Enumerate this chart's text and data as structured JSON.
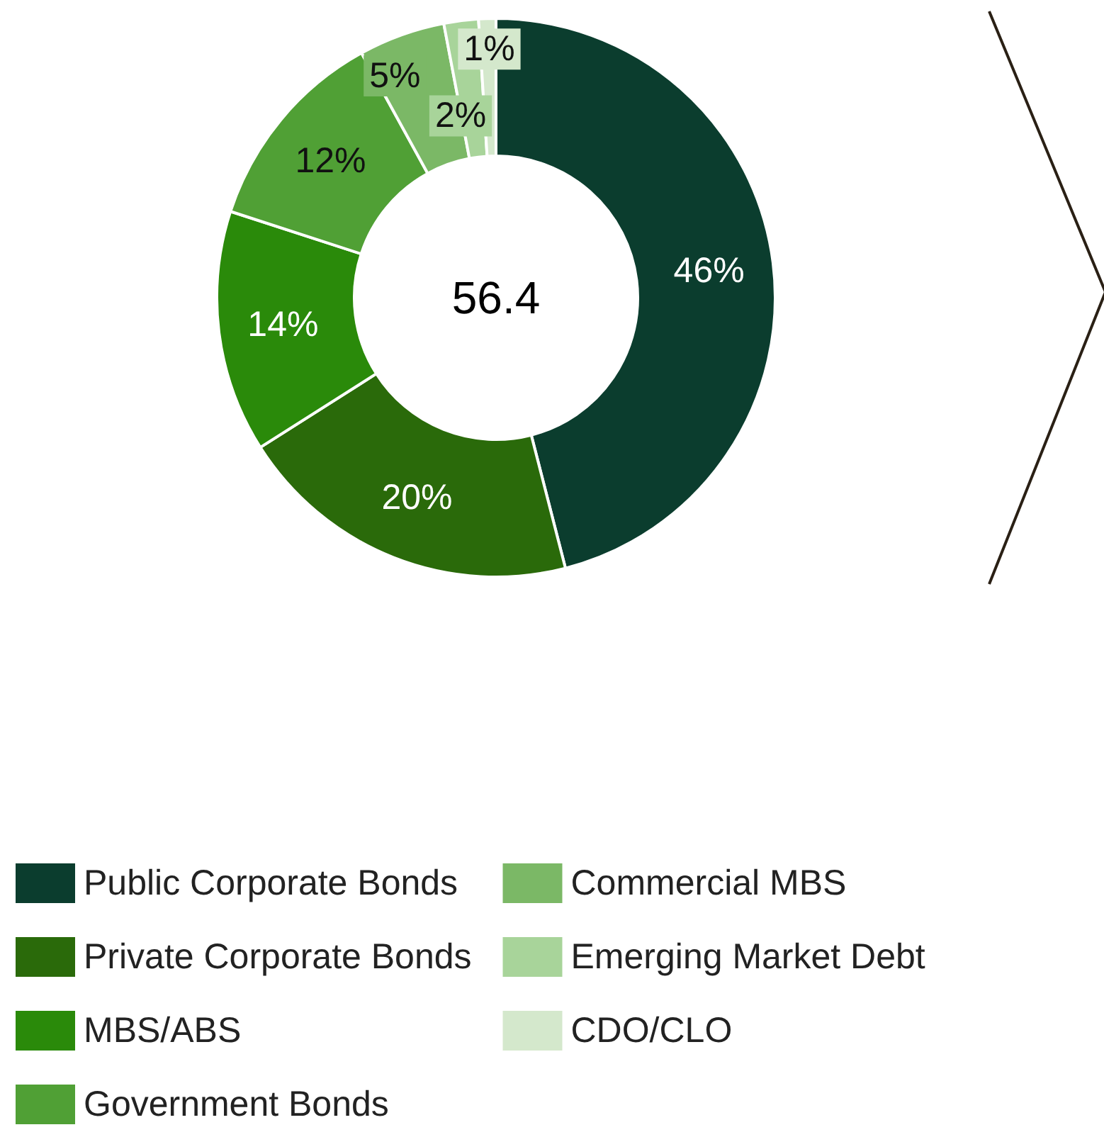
{
  "chart_data": {
    "type": "donut",
    "categories": [
      "Public Corporate Bonds",
      "Private Corporate Bonds",
      "MBS/ABS",
      "Government Bonds",
      "Commercial MBS",
      "Emerging Market Debt",
      "CDO/CLO"
    ],
    "values": [
      46,
      20,
      14,
      12,
      5,
      2,
      1
    ],
    "value_labels": [
      "46%",
      "20%",
      "14%",
      "12%",
      "5%",
      "2%",
      "1%"
    ],
    "colors": [
      "#0b3d2e",
      "#2a6a0a",
      "#2a8a0a",
      "#50a035",
      "#7bb866",
      "#a8d49a",
      "#d4e8cc"
    ],
    "annotations": [
      "56.4"
    ],
    "legend": "bottom"
  }
}
